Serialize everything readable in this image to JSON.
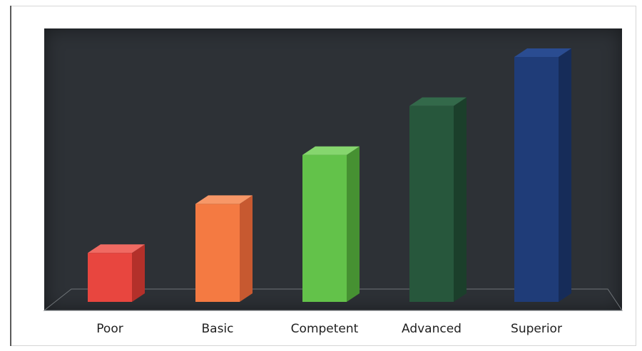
{
  "chart_data": {
    "type": "bar",
    "style": "3d-column",
    "categories": [
      "Poor",
      "Basic",
      "Competent",
      "Advanced",
      "Superior"
    ],
    "values": [
      1,
      2,
      3,
      4,
      5
    ],
    "colors": [
      "#e8463f",
      "#f47a42",
      "#63c24a",
      "#27573c",
      "#1f3c78"
    ],
    "side_colors": [
      "#b3302a",
      "#c75930",
      "#469132",
      "#1b3f2b",
      "#162c59"
    ],
    "top_colors": [
      "#f06a62",
      "#f79767",
      "#86d66e",
      "#33694a",
      "#2a4c91"
    ],
    "ylim": [
      0,
      5
    ],
    "background": "#2d3136",
    "grid": false,
    "legend": "none",
    "title": "",
    "xlabel": "",
    "ylabel": ""
  }
}
